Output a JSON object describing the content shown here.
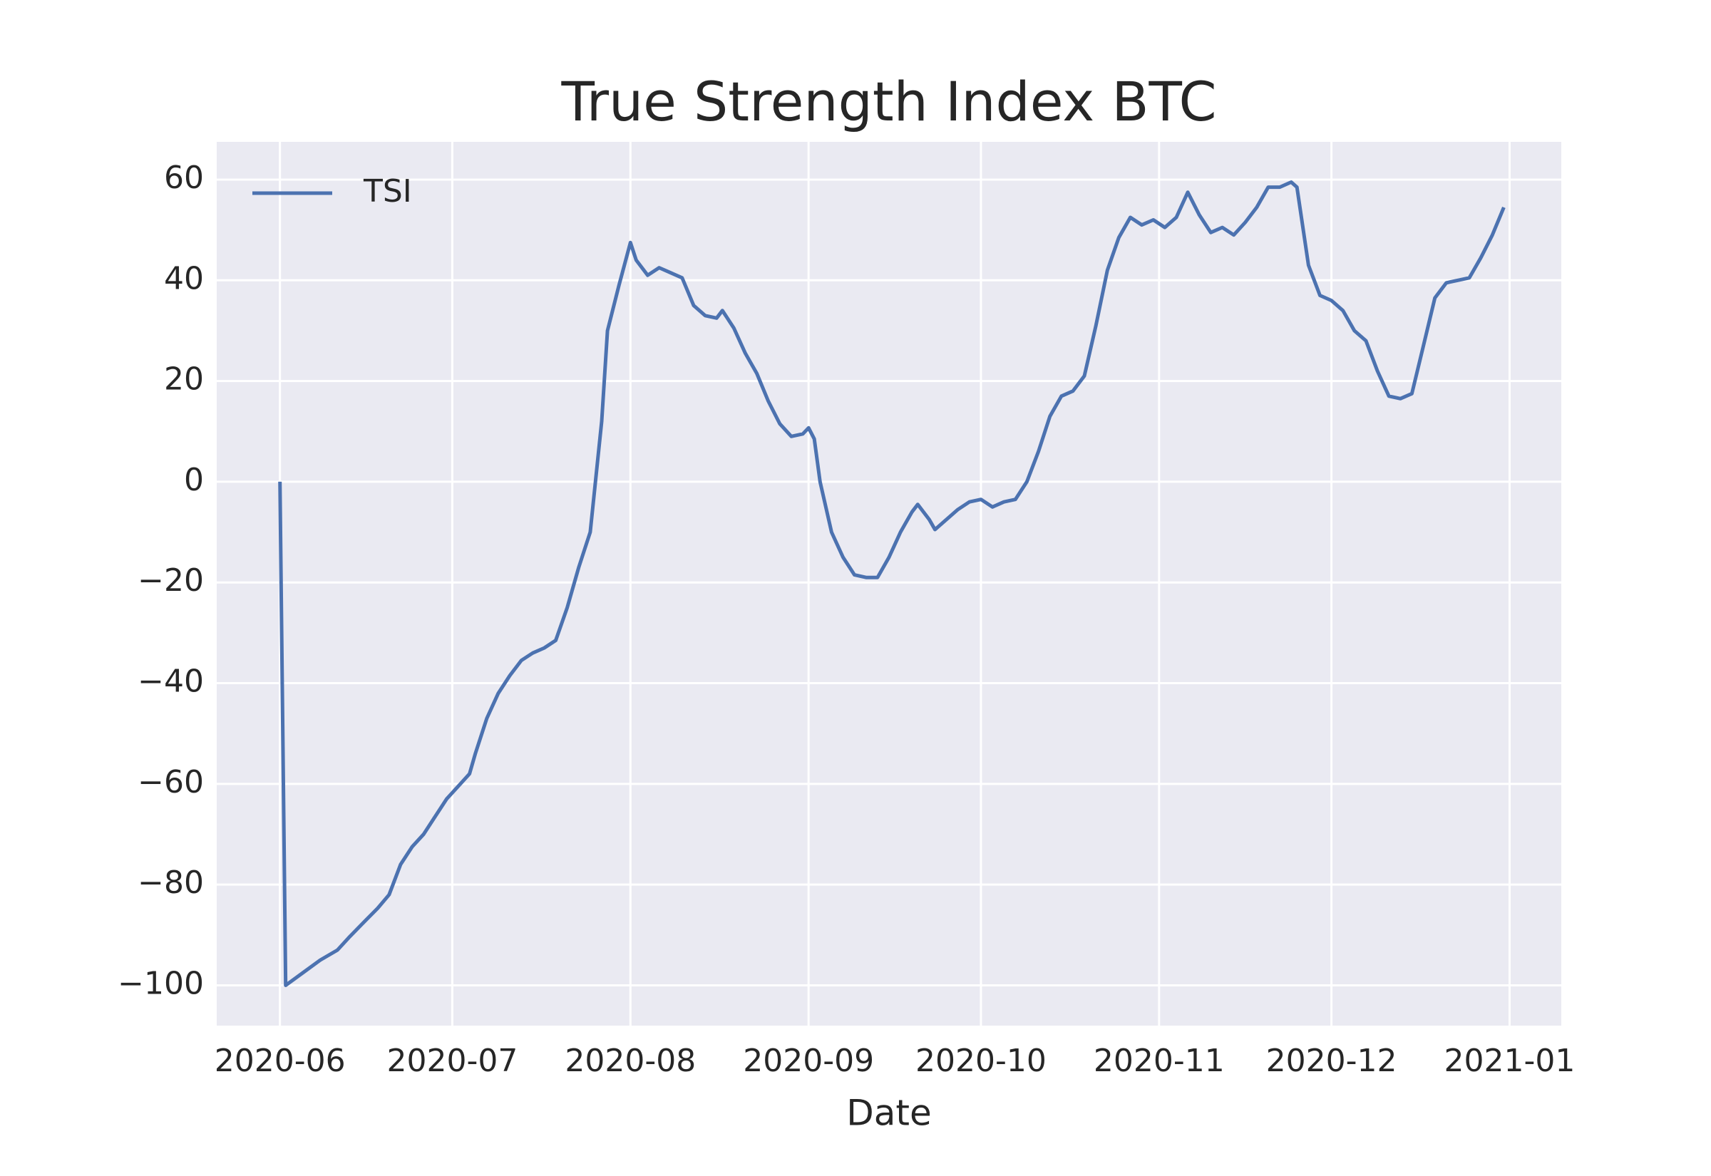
{
  "chart_data": {
    "type": "line",
    "title": "True Strength Index BTC",
    "x_label": "Date",
    "x": [
      "2020-06-01",
      "2020-06-02",
      "2020-06-05",
      "2020-06-08",
      "2020-06-11",
      "2020-06-13",
      "2020-06-16",
      "2020-06-18",
      "2020-06-20",
      "2020-06-22",
      "2020-06-24",
      "2020-06-26",
      "2020-06-28",
      "2020-06-30",
      "2020-07-02",
      "2020-07-04",
      "2020-07-05",
      "2020-07-07",
      "2020-07-09",
      "2020-07-11",
      "2020-07-13",
      "2020-07-15",
      "2020-07-17",
      "2020-07-19",
      "2020-07-21",
      "2020-07-23",
      "2020-07-25",
      "2020-07-27",
      "2020-07-28",
      "2020-07-30",
      "2020-08-01",
      "2020-08-02",
      "2020-08-04",
      "2020-08-06",
      "2020-08-08",
      "2020-08-10",
      "2020-08-12",
      "2020-08-14",
      "2020-08-16",
      "2020-08-17",
      "2020-08-19",
      "2020-08-21",
      "2020-08-23",
      "2020-08-25",
      "2020-08-27",
      "2020-08-29",
      "2020-08-31",
      "2020-09-01",
      "2020-09-02",
      "2020-09-03",
      "2020-09-05",
      "2020-09-07",
      "2020-09-09",
      "2020-09-11",
      "2020-09-13",
      "2020-09-15",
      "2020-09-17",
      "2020-09-19",
      "2020-09-20",
      "2020-09-22",
      "2020-09-23",
      "2020-09-25",
      "2020-09-27",
      "2020-09-29",
      "2020-10-01",
      "2020-10-03",
      "2020-10-05",
      "2020-10-07",
      "2020-10-09",
      "2020-10-11",
      "2020-10-13",
      "2020-10-15",
      "2020-10-17",
      "2020-10-19",
      "2020-10-21",
      "2020-10-23",
      "2020-10-25",
      "2020-10-27",
      "2020-10-29",
      "2020-10-31",
      "2020-11-02",
      "2020-11-04",
      "2020-11-06",
      "2020-11-08",
      "2020-11-10",
      "2020-11-12",
      "2020-11-14",
      "2020-11-16",
      "2020-11-18",
      "2020-11-20",
      "2020-11-22",
      "2020-11-24",
      "2020-11-25",
      "2020-11-27",
      "2020-11-29",
      "2020-12-01",
      "2020-12-03",
      "2020-12-05",
      "2020-12-07",
      "2020-12-09",
      "2020-12-11",
      "2020-12-13",
      "2020-12-15",
      "2020-12-17",
      "2020-12-19",
      "2020-12-21",
      "2020-12-23",
      "2020-12-25",
      "2020-12-27",
      "2020-12-29",
      "2020-12-31"
    ],
    "series": [
      {
        "name": "TSI",
        "color": "#4c72b0",
        "values": [
          0,
          -100,
          -97.5,
          -95,
          -93,
          -90.5,
          -87,
          -84.7,
          -82,
          -76,
          -72.5,
          -70,
          -66.5,
          -63,
          -60.5,
          -58,
          -54,
          -47,
          -42,
          -38.5,
          -35.5,
          -34,
          -33,
          -31.5,
          -25,
          -17,
          -10,
          12,
          30,
          39,
          47.5,
          44,
          41,
          42.5,
          41.5,
          40.5,
          35,
          33,
          32.5,
          34,
          30.5,
          25.5,
          21.5,
          16,
          11.5,
          9,
          9.5,
          10.7,
          8.5,
          0,
          -10,
          -15,
          -18.5,
          -19,
          -19,
          -15,
          -10,
          -6,
          -4.5,
          -7.5,
          -9.5,
          -7.5,
          -5.5,
          -4,
          -3.5,
          -5,
          -4,
          -3.5,
          0,
          6,
          13,
          17,
          18,
          21,
          31,
          42,
          48.5,
          52.5,
          51,
          52,
          50.5,
          52.5,
          57.5,
          53,
          49.5,
          50.5,
          49,
          51.5,
          54.5,
          58.5,
          58.5,
          59.5,
          58.5,
          43,
          37,
          36,
          34,
          30,
          28,
          22,
          17,
          16.5,
          17.5,
          27,
          36.5,
          39.5,
          40,
          40.5,
          44.5,
          49,
          54.5
        ]
      }
    ],
    "xlim": [
      "2020-05-21",
      "2021-01-10"
    ],
    "xticks": [
      "2020-06",
      "2020-07",
      "2020-08",
      "2020-09",
      "2020-10",
      "2020-11",
      "2020-12",
      "2021-01"
    ],
    "ylim": [
      -108,
      67.5
    ],
    "yticks": [
      {
        "value": -100,
        "label": "−100"
      },
      {
        "value": -80,
        "label": "−80"
      },
      {
        "value": -60,
        "label": "−60"
      },
      {
        "value": -40,
        "label": "−40"
      },
      {
        "value": -20,
        "label": "−20"
      },
      0,
      20,
      40,
      60
    ],
    "grid": true,
    "legend_loc": "upper left"
  }
}
